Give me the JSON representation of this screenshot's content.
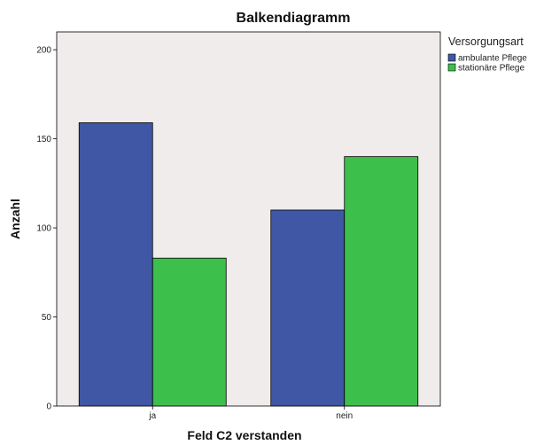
{
  "chart_data": {
    "type": "bar",
    "title": "Balkendiagramm",
    "xlabel": "Feld C2 verstanden",
    "ylabel": "Anzahl",
    "categories": [
      "ja",
      "nein"
    ],
    "series": [
      {
        "name": "ambulante Pflege",
        "values": [
          159,
          110
        ],
        "color": "#3f57a4"
      },
      {
        "name": "stationäre Pflege",
        "values": [
          83,
          140
        ],
        "color": "#3dbf4b"
      }
    ],
    "ylim": [
      0,
      210
    ],
    "yticks": [
      0,
      50,
      100,
      150,
      200
    ],
    "legend": {
      "title": "Versorgungsart",
      "position": "top-right"
    },
    "grid": false,
    "plot_background": "#f0ecec"
  }
}
